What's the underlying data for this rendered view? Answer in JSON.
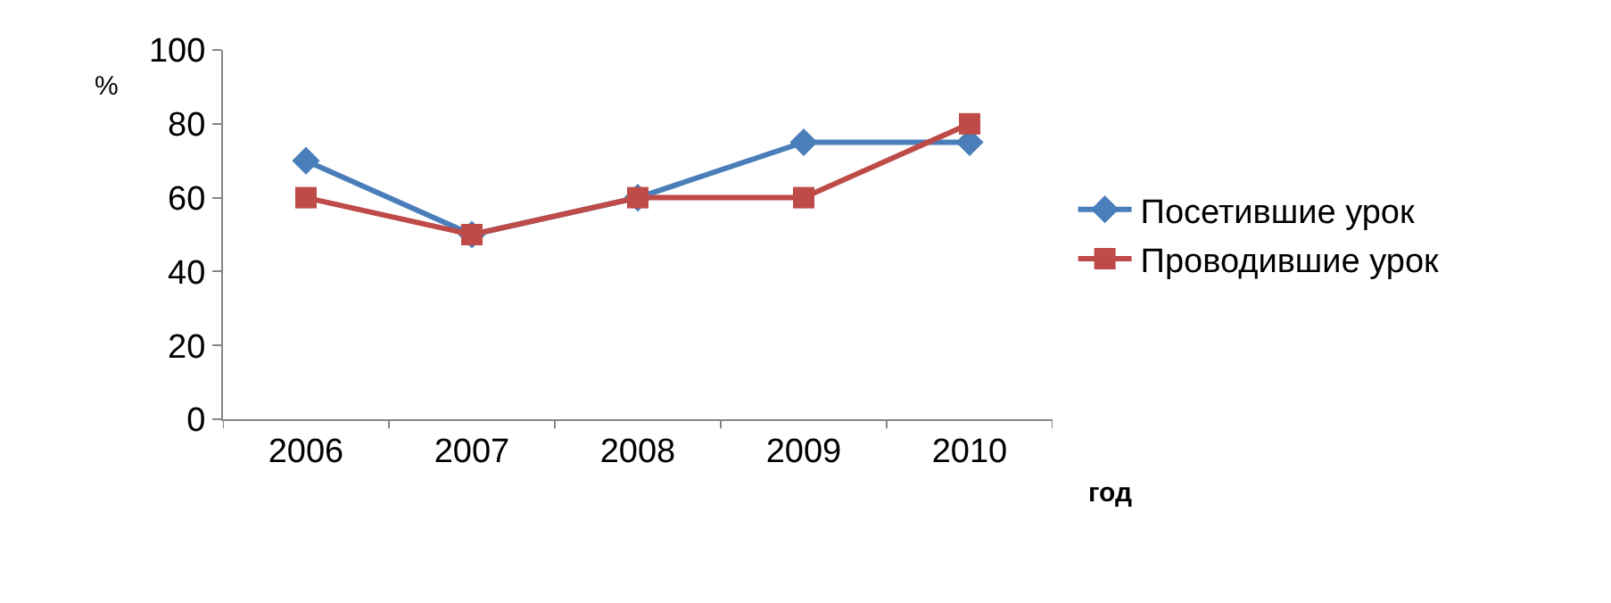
{
  "chart_data": {
    "type": "line",
    "ylabel": "%",
    "xlabel": "год",
    "categories": [
      "2006",
      "2007",
      "2008",
      "2009",
      "2010"
    ],
    "series": [
      {
        "name": "Посетившие урок",
        "color": "#4a7ebb",
        "marker": "diamond",
        "values": [
          70,
          50,
          60,
          75,
          75
        ]
      },
      {
        "name": "Проводившие урок",
        "color": "#be4b48",
        "marker": "square",
        "values": [
          60,
          50,
          60,
          60,
          80
        ]
      }
    ],
    "ylim": [
      0,
      100
    ],
    "yticks": [
      0,
      20,
      40,
      60,
      80,
      100
    ],
    "legend": "right",
    "line_style": "solid"
  }
}
